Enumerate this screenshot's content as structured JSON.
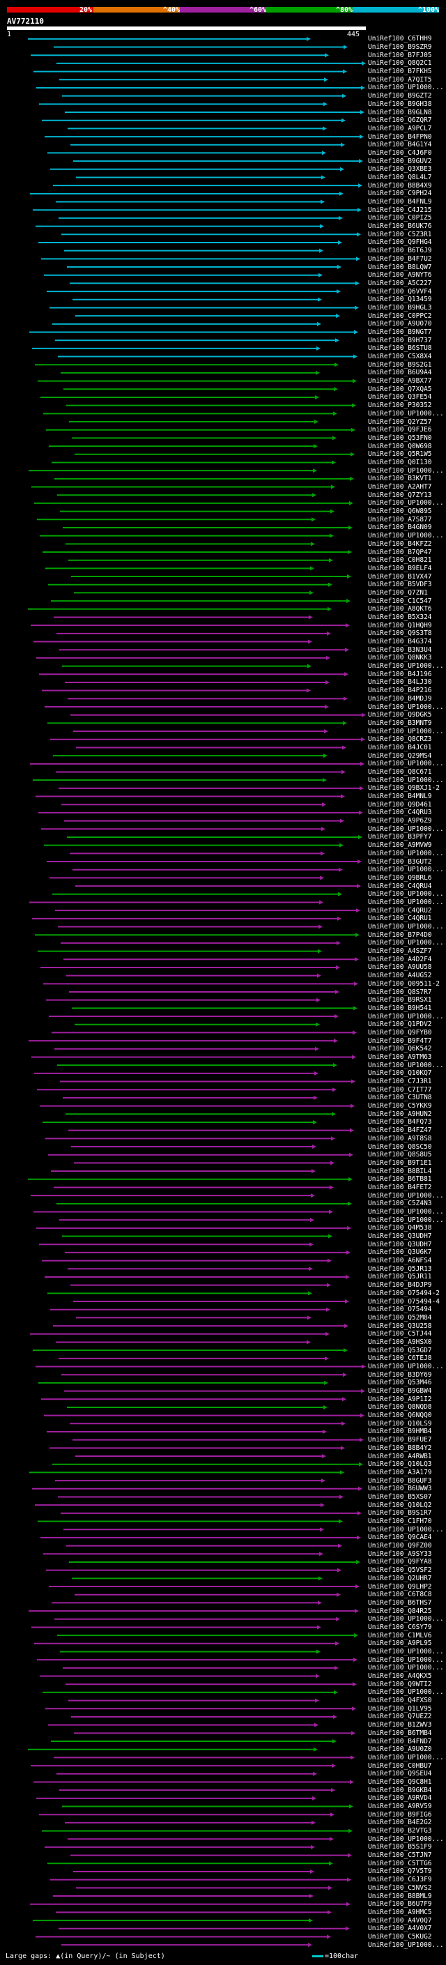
{
  "legend": {
    "segments": [
      {
        "label": "20%",
        "color": "#e00000"
      },
      {
        "label": "^40%",
        "color": "#e07000"
      },
      {
        "label": "^60%",
        "color": "#a020a0"
      },
      {
        "label": "^80%",
        "color": "#00a000"
      },
      {
        "label": "^100%",
        "color": "#00b4d0"
      }
    ]
  },
  "query": {
    "id": "AV772110",
    "start": "1",
    "end": "445"
  },
  "hits": [
    "UniRef100_C6THH9",
    "UniRef100_B9SZR9",
    "UniRef100_B7FJ05",
    "UniRef100_Q8Q2C1",
    "UniRef100_B7FKH5",
    "UniRef100_A7QIT5",
    "UniRef100_UP1000...",
    "UniRef100_B9GZT2",
    "UniRef100_B9GH38",
    "UniRef100_B9GLN8",
    "UniRef100_Q6ZQR7",
    "UniRef100_A9PCL7",
    "UniRef100_B4FPN0",
    "UniRef100_B4G1Y4",
    "UniRef100_C4J6F0",
    "UniRef100_B9GUV2",
    "UniRef100_Q3XBE3",
    "UniRef100_Q8L4L7",
    "UniRef100_B8B4X9",
    "UniRef100_C9PH24",
    "UniRef100_B4FNL9",
    "UniRef100_C4J215",
    "UniRef100_C0PIZ5",
    "UniRef100_B6UK76",
    "UniRef100_C5Z3R1",
    "UniRef100_Q9FHG4",
    "UniRef100_B6T6J9",
    "UniRef100_B4F7U2",
    "UniRef100_B8LQW7",
    "UniRef100_A9NYT6",
    "UniRef100_A5C227",
    "UniRef100_Q6VVF4",
    "UniRef100_Q13459",
    "UniRef100_B9HGL3",
    "UniRef100_C0PPC2",
    "UniRef100_A9U070",
    "UniRef100_B9NGT7",
    "UniRef100_B9H737",
    "UniRef100_B6STU8",
    "UniRef100_C5X8X4",
    "UniRef100_B9S2G1",
    "UniRef100_B6U9A4",
    "UniRef100_A9BX77",
    "UniRef100_Q7XQA5",
    "UniRef100_Q3FE54",
    "UniRef100_P30352",
    "UniRef100_UP1000...",
    "UniRef100_Q2YZ57",
    "UniRef100_Q9FJE6",
    "UniRef100_Q53FN0",
    "UniRef100_Q0W698",
    "UniRef100_Q5R1W5",
    "UniRef100_Q0I130",
    "UniRef100_UP1000...",
    "UniRef100_B3KVT1",
    "UniRef100_A2AHT7",
    "UniRef100_Q7ZY13",
    "UniRef100_UP1000...",
    "UniRef100_Q6W895",
    "UniRef100_A7S877",
    "UniRef100_B4GN09",
    "UniRef100_UP1000...",
    "UniRef100_B4KFZ2",
    "UniRef100_B7QP47",
    "UniRef100_C0H821",
    "UniRef100_B9ELF4",
    "UniRef100_B1VX47",
    "UniRef100_B5VDF3",
    "UniRef100_Q7ZN1",
    "UniRef100_C1C547",
    "UniRef100_A8QKT6",
    "UniRef100_B5X324",
    "UniRef100_Q1HQH9",
    "UniRef100_Q9S3T8",
    "UniRef100_B4G374",
    "UniRef100_B3N3U4",
    "UniRef100_Q8NKK3",
    "UniRef100_UP1000...",
    "UniRef100_B4J196",
    "UniRef100_B4LJ30",
    "UniRef100_B4P216",
    "UniRef100_B4MDJ9",
    "UniRef100_UP1000...",
    "UniRef100_Q9DGK5",
    "UniRef100_B3MNT9",
    "UniRef100_UP1000...",
    "UniRef100_Q8CRZ3",
    "UniRef100_B4JC01",
    "UniRef100_Q29MS4",
    "UniRef100_UP1000...",
    "UniRef100_Q8C671",
    "UniRef100_UP1000...",
    "UniRef100_Q9BXJ1-2",
    "UniRef100_B4MNL9",
    "UniRef100_Q9D461",
    "UniRef100_C4QRU3",
    "UniRef100_A9P6Z9",
    "UniRef100_UP1000...",
    "UniRef100_B3PFY7",
    "UniRef100_A9MVW9",
    "UniRef100_UP1000...",
    "UniRef100_B3GUT2",
    "UniRef100_UP1000...",
    "UniRef100_Q9BRL6",
    "UniRef100_C4QRU4",
    "UniRef100_UP1000...",
    "UniRef100_UP1000...",
    "UniRef100_C4QRU2",
    "UniRef100_C4QRU1",
    "UniRef100_UP1000...",
    "UniRef100_B7P4D0",
    "UniRef100_UP1000...",
    "UniRef100_A4SZF7",
    "UniRef100_A4D2F4",
    "UniRef100_A9UU58",
    "UniRef100_A4UG52",
    "UniRef100_Q09511-2",
    "UniRef100_Q8S7R7",
    "UniRef100_B9RSX1",
    "UniRef100_B9H541",
    "UniRef100_UP1000...",
    "UniRef100_Q1PDV2",
    "UniRef100_Q9FYB0",
    "UniRef100_B9F4T7",
    "UniRef100_Q6K542",
    "UniRef100_A9TM63",
    "UniRef100_UP1000...",
    "UniRef100_Q10KQ7",
    "UniRef100_C7J3R1",
    "UniRef100_C7IT77",
    "UniRef100_C3UTN8",
    "UniRef100_C5YKK9",
    "UniRef100_A9HUN2",
    "UniRef100_B4FQ73",
    "UniRef100_B4FZ47",
    "UniRef100_A9T8S8",
    "UniRef100_Q8SC50",
    "UniRef100_Q8S8U5",
    "UniRef100_B9T1E1",
    "UniRef100_B8BIL4",
    "UniRef100_B6TB81",
    "UniRef100_B4FET2",
    "UniRef100_UP1000...",
    "UniRef100_C5Z4N3",
    "UniRef100_UP1000...",
    "UniRef100_UP1000...",
    "UniRef100_Q4M538",
    "UniRef100_Q3UDH7",
    "UniRef100_Q3UDH7",
    "UniRef100_Q3U6K7",
    "UniRef100_A6NFS4",
    "UniRef100_Q5JR13",
    "UniRef100_Q5JR11",
    "UniRef100_B4DJP9",
    "UniRef100_O75494-2",
    "UniRef100_O75494-4",
    "UniRef100_O75494",
    "UniRef100_Q52M84",
    "UniRef100_Q3U258",
    "UniRef100_C5TJ44",
    "UniRef100_A9HSX0",
    "UniRef100_Q53GD7",
    "UniRef100_C6TEJ8",
    "UniRef100_UP1000...",
    "UniRef100_B3DY69",
    "UniRef100_Q53M46",
    "UniRef100_B9GBW4",
    "UniRef100_A9P1I2",
    "UniRef100_Q8NQD8",
    "UniRef100_Q6NQQ0",
    "UniRef100_Q10LS9",
    "UniRef100_B9HMB4",
    "UniRef100_B9FUE7",
    "UniRef100_B8B4Y2",
    "UniRef100_A4RWB1",
    "UniRef100_Q10LQ3",
    "UniRef100_A3A179",
    "UniRef100_B8GUF3",
    "UniRef100_B6UWW3",
    "UniRef100_B5XS07",
    "UniRef100_Q10LQ2",
    "UniRef100_B9S1R7",
    "UniRef100_C1FH70",
    "UniRef100_UP1000...",
    "UniRef100_Q9CAE4",
    "UniRef100_Q9FZ00",
    "UniRef100_A9SY33",
    "UniRef100_Q9FYA8",
    "UniRef100_Q5VSF2",
    "UniRef100_Q2UHR7",
    "UniRef100_Q9LHP2",
    "UniRef100_C6T8C8",
    "UniRef100_B6THS7",
    "UniRef100_Q84R25",
    "UniRef100_UP1000...",
    "UniRef100_C6SY79",
    "UniRef100_C1MLV6",
    "UniRef100_A9PL95",
    "UniRef100_UP1000...",
    "UniRef100_UP1000...",
    "UniRef100_UP1000...",
    "UniRef100_A4QKX5",
    "UniRef100_Q9WTI2",
    "UniRef100_UP1000...",
    "UniRef100_Q4FXS0",
    "UniRef100_Q1LV95",
    "UniRef100_Q7UEZ2",
    "UniRef100_B1ZWV3",
    "UniRef100_B6TMB4",
    "UniRef100_B4FND7",
    "UniRef100_A9U0Z0",
    "UniRef100_UP1000...",
    "UniRef100_C0HBU7",
    "UniRef100_Q9SEU4",
    "UniRef100_Q9C8H1",
    "UniRef100_B9GKB4",
    "UniRef100_A9RVD4",
    "UniRef100_A9RV59",
    "UniRef100_B9FIG6",
    "UniRef100_B4E2G2",
    "UniRef100_B2VTG3",
    "UniRef100_UP1000...",
    "UniRef100_B5S1F9",
    "UniRef100_C5TJN7",
    "UniRef100_C5TTG6",
    "UniRef100_Q7V5T9",
    "UniRef100_C6J3F9",
    "UniRef100_C5NVS2",
    "UniRef100_B8BML9",
    "UniRef100_B6U7F9",
    "UniRef100_A9HMC5",
    "UniRef100_A4V0Q7",
    "UniRef100_A4V0X7",
    "UniRef100_C5KUG2",
    "UniRef100_UP1000..."
  ],
  "footer": {
    "gaps_label": "Large gaps: ▲(in Query)/~ (in Subject)",
    "scale_label": "=100char"
  }
}
